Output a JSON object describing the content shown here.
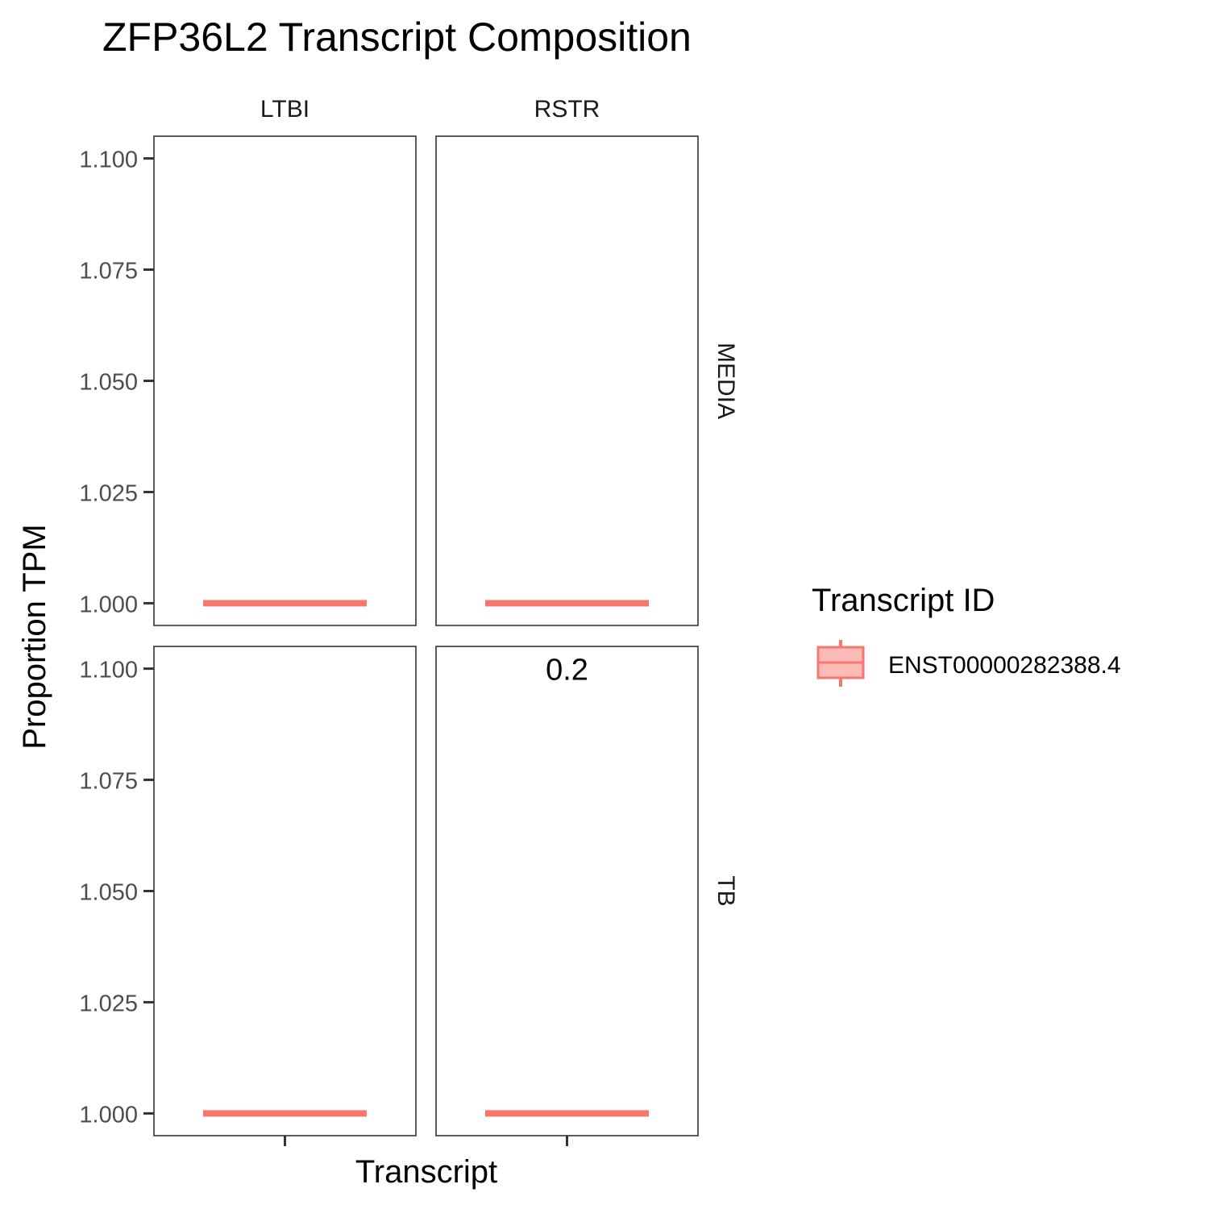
{
  "chart_data": {
    "type": "box",
    "title": "ZFP36L2 Transcript Composition",
    "xlabel": "Transcript",
    "ylabel": "Proportion TPM",
    "ylim": [
      0.995,
      1.105
    ],
    "yticks": [
      1.0,
      1.025,
      1.05,
      1.075,
      1.1
    ],
    "ytick_labels": [
      "1.000",
      "1.025",
      "1.050",
      "1.075",
      "1.100"
    ],
    "facet_columns": [
      "LTBI",
      "RSTR"
    ],
    "facet_rows": [
      "MEDIA",
      "TB"
    ],
    "legend": {
      "title": "Transcript ID",
      "position": "right",
      "entries": [
        {
          "name": "ENST00000282388.4",
          "color": "#F8766D"
        }
      ]
    },
    "series": [
      {
        "name": "ENST00000282388.4",
        "color": "#F8766D"
      }
    ],
    "panels": [
      {
        "col": "LTBI",
        "row": "MEDIA",
        "value": 1.0,
        "annotation": ""
      },
      {
        "col": "RSTR",
        "row": "MEDIA",
        "value": 1.0,
        "annotation": ""
      },
      {
        "col": "LTBI",
        "row": "TB",
        "value": 1.0,
        "annotation": ""
      },
      {
        "col": "RSTR",
        "row": "TB",
        "value": 1.0,
        "annotation": "0.2"
      }
    ],
    "grid": false
  }
}
